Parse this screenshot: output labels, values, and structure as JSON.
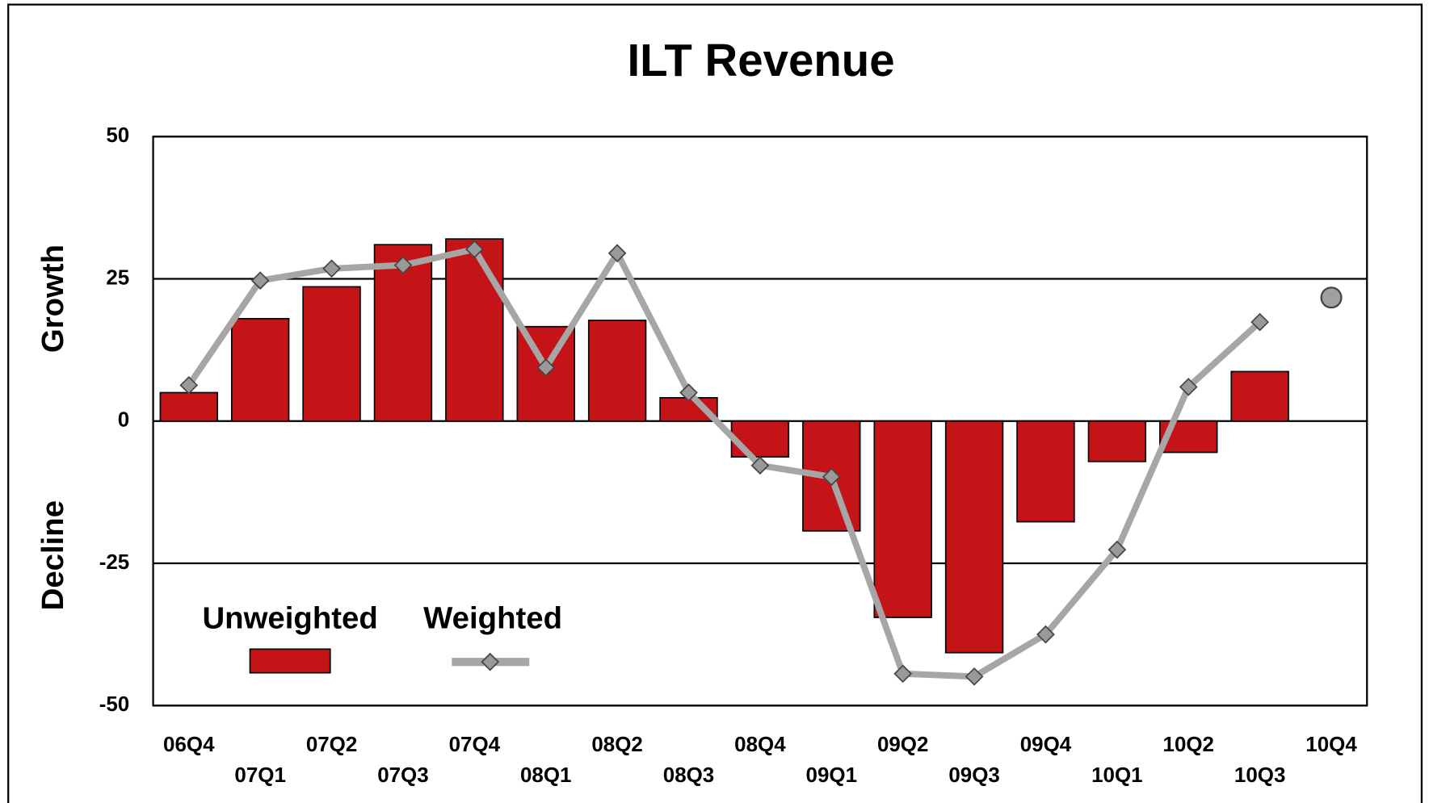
{
  "chart_data": {
    "type": "bar_line",
    "title": "ILT Revenue",
    "y_label_top": "Growth",
    "y_label_bottom": "Decline",
    "categories": [
      "06Q4",
      "07Q1",
      "07Q2",
      "07Q3",
      "07Q4",
      "08Q1",
      "08Q2",
      "08Q3",
      "08Q4",
      "09Q1",
      "09Q2",
      "09Q3",
      "09Q4",
      "10Q1",
      "10Q2",
      "10Q3",
      "10Q4"
    ],
    "series": [
      {
        "name": "Unweighted",
        "type": "bar",
        "color": "#c41418",
        "values": [
          5,
          18,
          23.6,
          31,
          32,
          16.6,
          17.7,
          4.1,
          -6.3,
          -19.3,
          -34.5,
          -40.7,
          -17.7,
          -7.1,
          -5.5,
          8.7,
          null
        ]
      },
      {
        "name": "Weighted",
        "type": "line",
        "color": "#a6a6a6",
        "values": [
          6.3,
          24.7,
          26.8,
          27.4,
          30.2,
          9.4,
          29.5,
          5,
          -7.8,
          -9.8,
          -44.4,
          -44.9,
          -37.5,
          -22.6,
          6,
          17.4,
          null
        ]
      },
      {
        "type": "point",
        "color": "#a0a0a0",
        "values": [
          null,
          null,
          null,
          null,
          null,
          null,
          null,
          null,
          null,
          null,
          null,
          null,
          null,
          null,
          null,
          null,
          21.7
        ]
      }
    ],
    "ylim": [
      -50,
      50
    ],
    "yticks": [
      -50,
      -25,
      0,
      25,
      50
    ],
    "grid": true,
    "legend": "lower left"
  }
}
